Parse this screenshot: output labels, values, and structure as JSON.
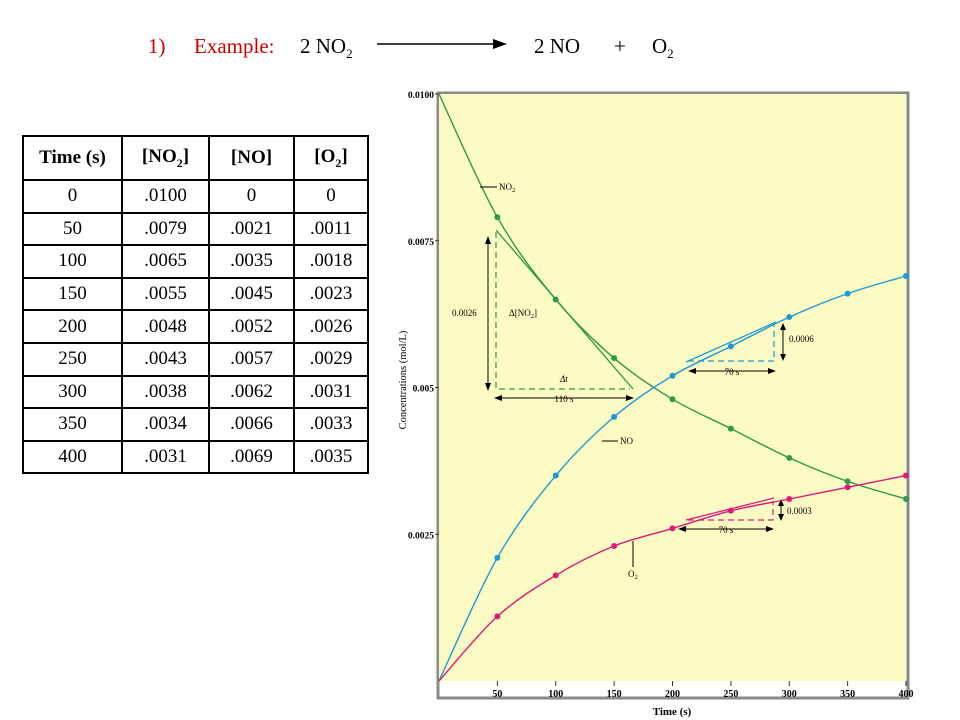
{
  "heading": {
    "number": "1)",
    "label": "Example:",
    "reactant_coef": "2 NO",
    "reactant_sub": "2",
    "product_no": "2 NO",
    "plus": "+",
    "product_o": "O",
    "product_o_sub": "2"
  },
  "table": {
    "headers": [
      {
        "main": "Time (s)",
        "sub": ""
      },
      {
        "main": "[NO",
        "sub": "2",
        "close": "]"
      },
      {
        "main": "[NO]",
        "sub": "",
        "close": ""
      },
      {
        "main": "[O",
        "sub": "2",
        "close": "]"
      }
    ],
    "rows": [
      [
        "0",
        ".0100",
        "0",
        "0"
      ],
      [
        "50",
        ".0079",
        ".0021",
        ".0011"
      ],
      [
        "100",
        ".0065",
        ".0035",
        ".0018"
      ],
      [
        "150",
        ".0055",
        ".0045",
        ".0023"
      ],
      [
        "200",
        ".0048",
        ".0052",
        ".0026"
      ],
      [
        "250",
        ".0043",
        ".0057",
        ".0029"
      ],
      [
        "300",
        ".0038",
        ".0062",
        ".0031"
      ],
      [
        "350",
        ".0034",
        ".0066",
        ".0033"
      ],
      [
        "400",
        ".0031",
        ".0069",
        ".0035"
      ]
    ]
  },
  "chart_data": {
    "type": "line",
    "xlabel": "Time (s)",
    "ylabel": "Concentrations (mol/L)",
    "xlim": [
      0,
      400
    ],
    "ylim": [
      0,
      0.01
    ],
    "x_ticks": [
      "50",
      "100",
      "150",
      "200",
      "250",
      "300",
      "350",
      "400"
    ],
    "y_ticks": [
      {
        "value": 0.0025,
        "label": "0.0025"
      },
      {
        "value": 0.005,
        "label": "0.005"
      },
      {
        "value": 0.0075,
        "label": "0.0075"
      },
      {
        "value": 0.01,
        "label": "0.0100"
      }
    ],
    "x": [
      0,
      50,
      100,
      150,
      200,
      250,
      300,
      350,
      400
    ],
    "series": [
      {
        "name": "NO2",
        "label_main": "NO",
        "label_sub": "2",
        "color": "#2e9a4a",
        "values": [
          0.01,
          0.0079,
          0.0065,
          0.0055,
          0.0048,
          0.0043,
          0.0038,
          0.0034,
          0.0031
        ]
      },
      {
        "name": "NO",
        "label_main": "NO",
        "label_sub": "",
        "color": "#1e9ad6",
        "values": [
          0,
          0.0021,
          0.0035,
          0.0045,
          0.0052,
          0.0057,
          0.0062,
          0.0066,
          0.0069
        ]
      },
      {
        "name": "O2",
        "label_main": "O",
        "label_sub": "2",
        "color": "#e0197a",
        "values": [
          0,
          0.0011,
          0.0018,
          0.0023,
          0.0026,
          0.0029,
          0.0031,
          0.0033,
          0.0035
        ]
      }
    ],
    "annotations": {
      "delta_no2_value": "0.0026",
      "delta_no2_label": "Δ[NO",
      "delta_no2_sub": "2",
      "delta_t_label": "Δt",
      "time_110": "110 s",
      "no_delta_value": "0.0006",
      "no_time": "70 s",
      "o2_delta_value": "0.0003",
      "o2_time": "70 s"
    },
    "colors": {
      "background": "#fbfbc3",
      "frame": "#8a8a8a"
    }
  }
}
